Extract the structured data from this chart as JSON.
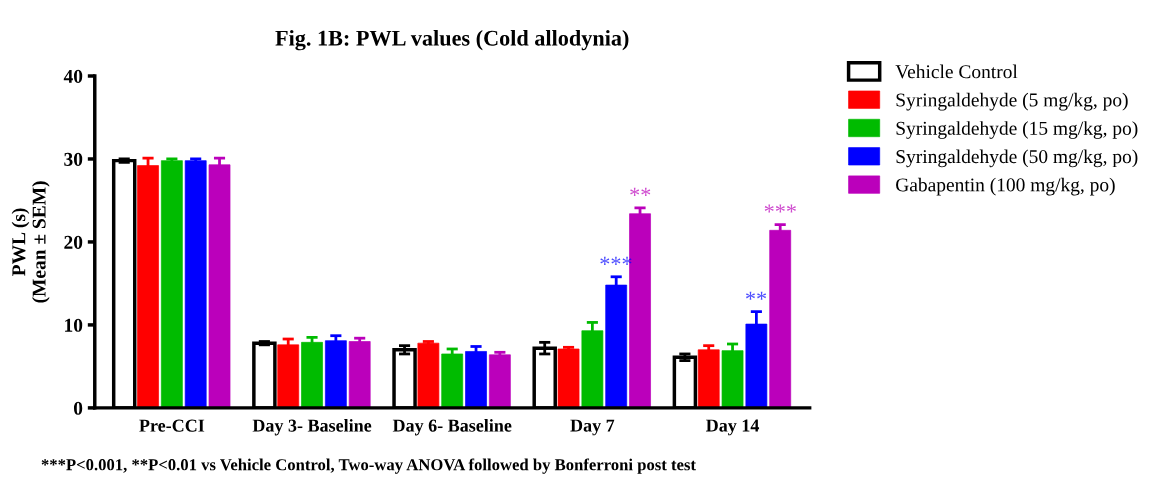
{
  "chart_data": {
    "type": "bar",
    "title": "Fig. 1B: PWL values (Cold allodynia)",
    "ylabel": "PWL (s)\n(Mean ± SEM)",
    "categories": [
      "Pre-CCI",
      "Day 3- Baseline",
      "Day 6- Baseline",
      "Day 7",
      "Day 14"
    ],
    "series": [
      {
        "name": "Vehicle Control",
        "color": "#ffffff",
        "values": [
          29.8,
          7.8,
          7.0,
          7.2,
          6.1
        ],
        "errors": [
          0.2,
          0.2,
          0.5,
          0.7,
          0.4
        ]
      },
      {
        "name": "Syringaldehyde (5 mg/kg, po)",
        "color": "#ff0000",
        "values": [
          29.2,
          7.6,
          7.8,
          7.1,
          7.0
        ],
        "errors": [
          0.9,
          0.7,
          0.2,
          0.2,
          0.5
        ]
      },
      {
        "name": "Syringaldehyde (15 mg/kg, po)",
        "color": "#00bb00",
        "values": [
          29.8,
          7.9,
          6.5,
          9.3,
          6.9
        ],
        "errors": [
          0.2,
          0.6,
          0.6,
          1.0,
          0.8
        ]
      },
      {
        "name": "Syringaldehyde (50 mg/kg, po)",
        "color": "#0000ff",
        "values": [
          29.8,
          8.1,
          6.8,
          14.8,
          10.1
        ],
        "errors": [
          0.2,
          0.6,
          0.6,
          1.0,
          1.5
        ]
      },
      {
        "name": "Gabapentin (100 mg/kg, po)",
        "color": "#bb00bb",
        "values": [
          29.3,
          8.0,
          6.4,
          23.4,
          21.4
        ],
        "errors": [
          0.8,
          0.4,
          0.3,
          0.7,
          0.7
        ]
      }
    ],
    "ylim": [
      0,
      40
    ],
    "yticks": [
      0,
      10,
      20,
      30,
      40
    ],
    "grid": false,
    "legend": "right",
    "annotations": [
      "***",
      "**",
      "**",
      "***",
      "***P<0.001, **P<0.01 vs Vehicle Control, Two-way ANOVA followed by Bonferroni post test"
    ]
  }
}
